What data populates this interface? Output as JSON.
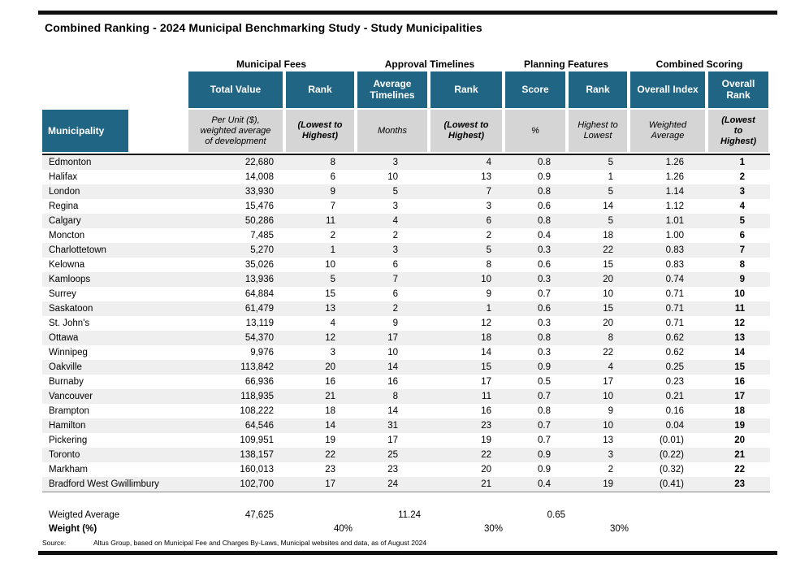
{
  "title": "Combined Ranking - 2024 Municipal Benchmarking Study - Study Municipalities",
  "colors": {
    "header_teal": "#216584",
    "subheader_gray": "#D5D5D5",
    "row_stripe": "#EFEFEF",
    "rule_black": "#111111"
  },
  "table": {
    "groups": [
      {
        "label": "Municipal Fees"
      },
      {
        "label": "Approval Timelines"
      },
      {
        "label": "Planning Features"
      },
      {
        "label": "Combined Scoring"
      }
    ],
    "columns": [
      {
        "key": "municipality",
        "header": "Municipality",
        "sub": ""
      },
      {
        "key": "total_value",
        "header": "Total Value",
        "sub": "Per Unit ($), weighted average of development"
      },
      {
        "key": "fees_rank",
        "header": "Rank",
        "sub": "(Lowest to Highest)"
      },
      {
        "key": "avg_timelines",
        "header": "Average Timelines",
        "sub": "Months"
      },
      {
        "key": "timelines_rank",
        "header": "Rank",
        "sub": "(Lowest to Highest)"
      },
      {
        "key": "score",
        "header": "Score",
        "sub": "%"
      },
      {
        "key": "features_rank",
        "header": "Rank",
        "sub": "Highest to Lowest"
      },
      {
        "key": "overall_index",
        "header": "Overall Index",
        "sub": "Weighted Average"
      },
      {
        "key": "overall_rank",
        "header": "Overall Rank",
        "sub": "(Lowest to Highest)"
      }
    ],
    "rows": [
      [
        "Edmonton",
        "22,680",
        "8",
        "3",
        "4",
        "0.8",
        "5",
        "1.26",
        "1"
      ],
      [
        "Halifax",
        "14,008",
        "6",
        "10",
        "13",
        "0.9",
        "1",
        "1.26",
        "2"
      ],
      [
        "London",
        "33,930",
        "9",
        "5",
        "7",
        "0.8",
        "5",
        "1.14",
        "3"
      ],
      [
        "Regina",
        "15,476",
        "7",
        "3",
        "3",
        "0.6",
        "14",
        "1.12",
        "4"
      ],
      [
        "Calgary",
        "50,286",
        "11",
        "4",
        "6",
        "0.8",
        "5",
        "1.01",
        "5"
      ],
      [
        "Moncton",
        "7,485",
        "2",
        "2",
        "2",
        "0.4",
        "18",
        "1.00",
        "6"
      ],
      [
        "Charlottetown",
        "5,270",
        "1",
        "3",
        "5",
        "0.3",
        "22",
        "0.83",
        "7"
      ],
      [
        "Kelowna",
        "35,026",
        "10",
        "6",
        "8",
        "0.6",
        "15",
        "0.83",
        "8"
      ],
      [
        "Kamloops",
        "13,936",
        "5",
        "7",
        "10",
        "0.3",
        "20",
        "0.74",
        "9"
      ],
      [
        "Surrey",
        "64,884",
        "15",
        "6",
        "9",
        "0.7",
        "10",
        "0.71",
        "10"
      ],
      [
        "Saskatoon",
        "61,479",
        "13",
        "2",
        "1",
        "0.6",
        "15",
        "0.71",
        "11"
      ],
      [
        "St. John's",
        "13,119",
        "4",
        "9",
        "12",
        "0.3",
        "20",
        "0.71",
        "12"
      ],
      [
        "Ottawa",
        "54,370",
        "12",
        "17",
        "18",
        "0.8",
        "8",
        "0.62",
        "13"
      ],
      [
        "Winnipeg",
        "9,976",
        "3",
        "10",
        "14",
        "0.3",
        "22",
        "0.62",
        "14"
      ],
      [
        "Oakville",
        "113,842",
        "20",
        "14",
        "15",
        "0.9",
        "4",
        "0.25",
        "15"
      ],
      [
        "Burnaby",
        "66,936",
        "16",
        "16",
        "17",
        "0.5",
        "17",
        "0.23",
        "16"
      ],
      [
        "Vancouver",
        "118,935",
        "21",
        "8",
        "11",
        "0.7",
        "10",
        "0.21",
        "17"
      ],
      [
        "Brampton",
        "108,222",
        "18",
        "14",
        "16",
        "0.8",
        "9",
        "0.16",
        "18"
      ],
      [
        "Hamilton",
        "64,546",
        "14",
        "31",
        "23",
        "0.7",
        "10",
        "0.04",
        "19"
      ],
      [
        "Pickering",
        "109,951",
        "19",
        "17",
        "19",
        "0.7",
        "13",
        "(0.01)",
        "20"
      ],
      [
        "Toronto",
        "138,157",
        "22",
        "25",
        "22",
        "0.9",
        "3",
        "(0.22)",
        "21"
      ],
      [
        "Markham",
        "160,013",
        "23",
        "23",
        "20",
        "0.9",
        "2",
        "(0.32)",
        "22"
      ],
      [
        "Bradford West Gwillimbury",
        "102,700",
        "17",
        "24",
        "21",
        "0.4",
        "19",
        "(0.41)",
        "23"
      ]
    ],
    "footer": {
      "weighted_avg_label": "Weigted Average",
      "weighted_avg": {
        "total_value": "47,625",
        "avg_timelines": "11.24",
        "score": "0.65"
      },
      "weight_label": "Weight (%)",
      "weights": {
        "fees_rank": "40%",
        "timelines_rank": "30%",
        "features_rank": "30%"
      }
    },
    "source_label": "Source:",
    "source_text": "Altus Group, based on  Municipal Fee and Charges By-Laws, Municipal websites and data, as of August 2024"
  }
}
